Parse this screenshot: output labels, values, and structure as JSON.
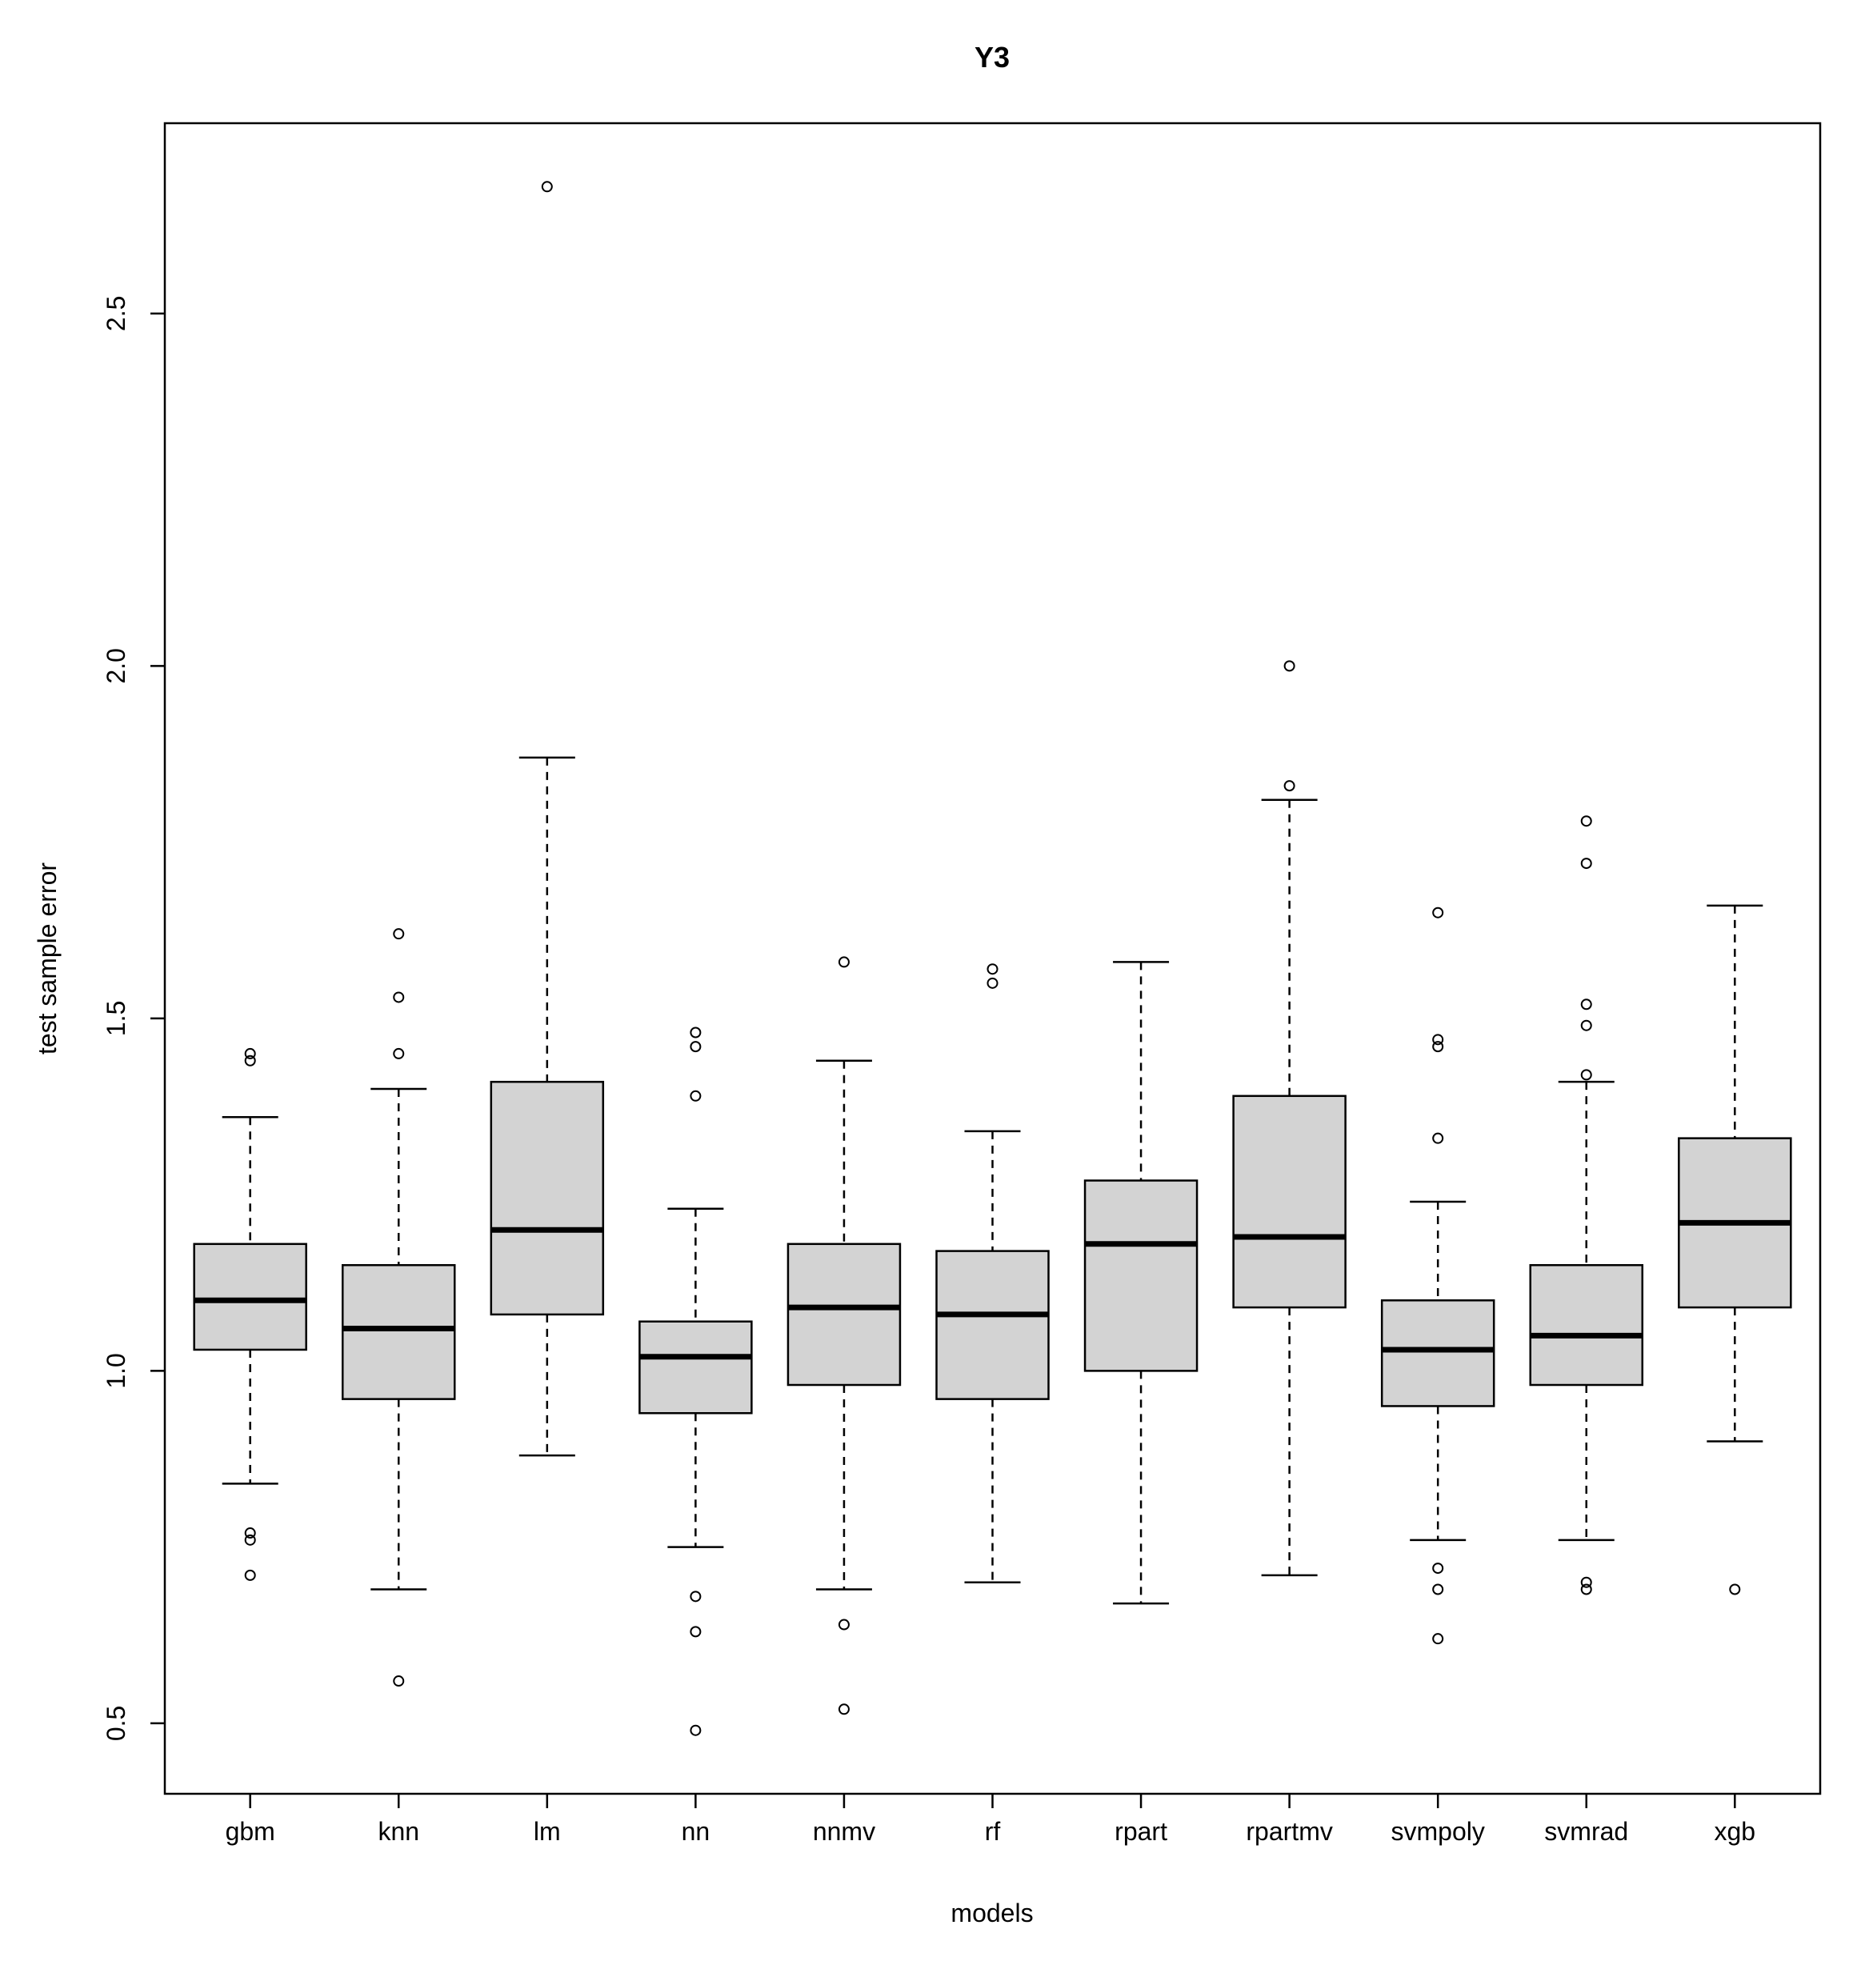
{
  "chart_data": {
    "type": "boxplot",
    "title": "Y3",
    "xlabel": "models",
    "ylabel": "test sample error",
    "ylim": [
      0.4,
      2.77
    ],
    "yticks": [
      0.5,
      1.0,
      1.5,
      2.0,
      2.5
    ],
    "ytick_labels": [
      "0.5",
      "1.0",
      "1.5",
      "2.0",
      "2.5"
    ],
    "categories": [
      "gbm",
      "knn",
      "lm",
      "nn",
      "nnmv",
      "rf",
      "rpart",
      "rpartmv",
      "svmpoly",
      "svmrad",
      "xgb"
    ],
    "box_fill": "#d3d3d3",
    "line_color": "#000000",
    "boxes": [
      {
        "name": "gbm",
        "whisker_low": 0.84,
        "q1": 1.03,
        "median": 1.1,
        "q3": 1.18,
        "whisker_high": 1.36,
        "outliers": [
          1.45,
          1.44,
          0.77,
          0.76,
          0.71
        ]
      },
      {
        "name": "knn",
        "whisker_low": 0.69,
        "q1": 0.96,
        "median": 1.06,
        "q3": 1.15,
        "whisker_high": 1.4,
        "outliers": [
          1.62,
          1.53,
          1.45,
          0.56
        ]
      },
      {
        "name": "lm",
        "whisker_low": 0.88,
        "q1": 1.08,
        "median": 1.2,
        "q3": 1.41,
        "whisker_high": 1.87,
        "outliers": [
          2.68
        ]
      },
      {
        "name": "nn",
        "whisker_low": 0.75,
        "q1": 0.94,
        "median": 1.02,
        "q3": 1.07,
        "whisker_high": 1.23,
        "outliers": [
          1.48,
          1.46,
          1.39,
          0.68,
          0.63,
          0.49
        ]
      },
      {
        "name": "nnmv",
        "whisker_low": 0.69,
        "q1": 0.98,
        "median": 1.09,
        "q3": 1.18,
        "whisker_high": 1.44,
        "outliers": [
          1.58,
          0.64,
          0.52
        ]
      },
      {
        "name": "rf",
        "whisker_low": 0.7,
        "q1": 0.96,
        "median": 1.08,
        "q3": 1.17,
        "whisker_high": 1.34,
        "outliers": [
          1.57,
          1.55
        ]
      },
      {
        "name": "rpart",
        "whisker_low": 0.67,
        "q1": 1.0,
        "median": 1.18,
        "q3": 1.27,
        "whisker_high": 1.58,
        "outliers": []
      },
      {
        "name": "rpartmv",
        "whisker_low": 0.71,
        "q1": 1.09,
        "median": 1.19,
        "q3": 1.39,
        "whisker_high": 1.81,
        "outliers": [
          2.0,
          1.83
        ]
      },
      {
        "name": "svmpoly",
        "whisker_low": 0.76,
        "q1": 0.95,
        "median": 1.03,
        "q3": 1.1,
        "whisker_high": 1.24,
        "outliers": [
          1.65,
          1.47,
          1.46,
          1.33,
          0.72,
          0.69,
          0.62
        ]
      },
      {
        "name": "svmrad",
        "whisker_low": 0.76,
        "q1": 0.98,
        "median": 1.05,
        "q3": 1.15,
        "whisker_high": 1.41,
        "outliers": [
          1.78,
          1.72,
          1.52,
          1.49,
          1.42,
          0.7,
          0.69
        ]
      },
      {
        "name": "xgb",
        "whisker_low": 0.9,
        "q1": 1.09,
        "median": 1.21,
        "q3": 1.33,
        "whisker_high": 1.66,
        "outliers": [
          0.69
        ]
      }
    ]
  }
}
